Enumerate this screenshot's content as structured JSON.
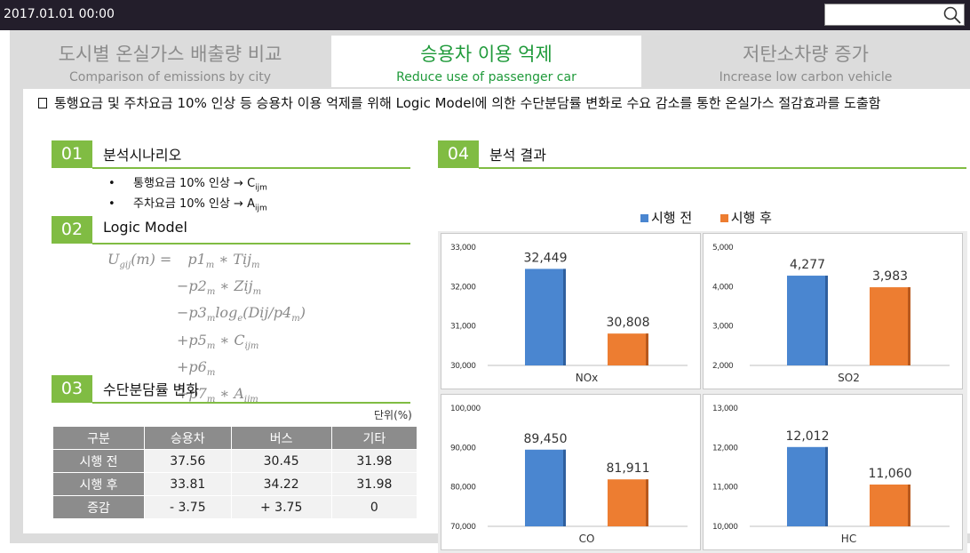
{
  "header": {
    "datetime": "2017.01.01 00:00",
    "search_placeholder": "",
    "search_value": ""
  },
  "tabs": [
    {
      "ko": "도시별 온실가스 배출량 비교",
      "en": "Comparison of emissions by city",
      "active": false
    },
    {
      "ko": "승용차 이용 억제",
      "en": "Reduce use of passenger car",
      "active": true
    },
    {
      "ko": "저탄소차량 증가",
      "en": "Increase low carbon vehicle",
      "active": false
    }
  ],
  "intro": "통행요금 및 주차요금 10% 인상 등 승용차 이용 억제를 위해 Logic Model에 의한 수단분담률 변화로 수요 감소를 통한 온실가스 절감효과를 도출함",
  "sections": {
    "s01": {
      "num": "01",
      "title": "분석시나리오"
    },
    "s02": {
      "num": "02",
      "title": "Logic Model"
    },
    "s03": {
      "num": "03",
      "title": "수단분담률 변화"
    },
    "s04": {
      "num": "04",
      "title": "분석 결과"
    }
  },
  "scenario": {
    "item1": {
      "text": "통행요금 10% 인상 → C",
      "sub": "ijm"
    },
    "item2": {
      "text": "주차요금 10% 인상 → A",
      "sub": "ijm"
    }
  },
  "formula": {
    "lhs": "U",
    "lhs_sub": "gij",
    "lhs_arg": "(m) =",
    "rows": [
      {
        "text": "p1",
        "sub": "m",
        "rest": " ∗ Tij",
        "sub2": "m"
      },
      {
        "text": "−p2",
        "sub": "m",
        "rest": " ∗ Zij",
        "sub2": "m"
      },
      {
        "text": "−p3",
        "sub": "m",
        "rest": "log",
        "sub2": "e",
        "rest2": "(Dij/p4",
        "sub3": "m",
        "rest3": ")"
      },
      {
        "text": "+p5",
        "sub": "m",
        "rest": " ∗ C",
        "sub2": "ijm"
      },
      {
        "text": "+p6",
        "sub": "m"
      },
      {
        "text": "+p7",
        "sub": "m",
        "rest": " ∗ A",
        "sub2": "ijm"
      }
    ]
  },
  "mode_share": {
    "unit": "단위(%)",
    "headers": [
      "구분",
      "승용차",
      "버스",
      "기타"
    ],
    "rows": [
      {
        "label": "시행 전",
        "car": "37.56",
        "bus": "30.45",
        "other": "31.98"
      },
      {
        "label": "시행 후",
        "car": "33.81",
        "bus": "34.22",
        "other": "31.98"
      },
      {
        "label": "증감",
        "car": "- 3.75",
        "bus": "+ 3.75",
        "other": "0"
      }
    ]
  },
  "legend": {
    "before": "시행 전",
    "after": "시행 후",
    "before_color": "#4a86d0",
    "after_color": "#ed7d31"
  },
  "chart_data": [
    {
      "type": "bar",
      "categories": [
        "NOx"
      ],
      "series": [
        {
          "name": "시행 전",
          "values": [
            32449
          ]
        },
        {
          "name": "시행 후",
          "values": [
            30808
          ]
        }
      ],
      "ylim": [
        30000,
        33000
      ],
      "yticks": [
        "30,000",
        "31,000",
        "32,000",
        "33,000"
      ],
      "labels": [
        "32,449",
        "30,808"
      ],
      "xlabel": "NOx"
    },
    {
      "type": "bar",
      "categories": [
        "SO2"
      ],
      "series": [
        {
          "name": "시행 전",
          "values": [
            4277
          ]
        },
        {
          "name": "시행 후",
          "values": [
            3983
          ]
        }
      ],
      "ylim": [
        2000,
        5000
      ],
      "yticks": [
        "2,000",
        "3,000",
        "4,000",
        "5,000"
      ],
      "labels": [
        "4,277",
        "3,983"
      ],
      "xlabel": "SO2"
    },
    {
      "type": "bar",
      "categories": [
        "CO"
      ],
      "series": [
        {
          "name": "시행 전",
          "values": [
            89450
          ]
        },
        {
          "name": "시행 후",
          "values": [
            81911
          ]
        }
      ],
      "ylim": [
        70000,
        100000
      ],
      "yticks": [
        "70,000",
        "80,000",
        "90,000",
        "100,000"
      ],
      "labels": [
        "89,450",
        "81,911"
      ],
      "xlabel": "CO"
    },
    {
      "type": "bar",
      "categories": [
        "HC"
      ],
      "series": [
        {
          "name": "시행 전",
          "values": [
            12012
          ]
        },
        {
          "name": "시행 후",
          "values": [
            11060
          ]
        }
      ],
      "ylim": [
        10000,
        13000
      ],
      "yticks": [
        "10,000",
        "11,000",
        "12,000",
        "13,000"
      ],
      "labels": [
        "12,012",
        "11,060"
      ],
      "xlabel": "HC"
    }
  ]
}
